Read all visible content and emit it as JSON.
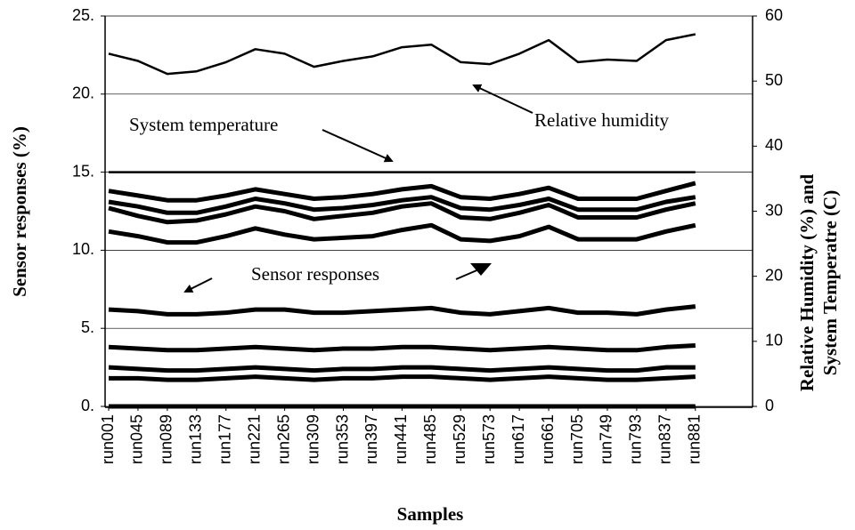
{
  "chart_data": {
    "type": "line",
    "xlabel": "Samples",
    "ylabel": "Sensor responses (%)",
    "y2label": [
      "Relative Humidity (%) and",
      "System Temperatre (C)"
    ],
    "annotations": [
      "System temperature",
      "Relative humidity",
      "Sensor responses"
    ],
    "categories": [
      "run001",
      "run045",
      "run089",
      "run133",
      "run177",
      "run221",
      "run265",
      "run309",
      "run353",
      "run397",
      "run441",
      "run485",
      "run529",
      "run573",
      "run617",
      "run661",
      "run705",
      "run749",
      "run793",
      "run837",
      "run881"
    ],
    "ylim": [
      0,
      25
    ],
    "yticks": [
      {
        "value": 0,
        "label": "0."
      },
      {
        "value": 5,
        "label": "5."
      },
      {
        "value": 10,
        "label": "10."
      },
      {
        "value": 15,
        "label": "15."
      },
      {
        "value": 20,
        "label": "20."
      },
      {
        "value": 25,
        "label": "25."
      }
    ],
    "y2lim": [
      0,
      60
    ],
    "y2ticks": [
      0,
      10,
      20,
      30,
      40,
      50,
      60
    ],
    "grid": true,
    "series": [
      {
        "axis": "y2",
        "color": "#000000",
        "values": [
          54.2,
          53.1,
          51.1,
          51.5,
          52.9,
          54.9,
          54.2,
          52.2,
          53.1,
          53.8,
          55.2,
          55.6,
          52.9,
          52.6,
          54.2,
          56.3,
          52.9,
          53.3,
          53.1,
          56.3,
          57.2
        ]
      },
      {
        "axis": "y2",
        "color": "#000000",
        "values": [
          36,
          36,
          36,
          36,
          36,
          36,
          36,
          36,
          36,
          36,
          36,
          36,
          36,
          36,
          36,
          36,
          36,
          36,
          36,
          36,
          36
        ]
      },
      {
        "color": "#000000",
        "values": [
          13.8,
          13.5,
          13.2,
          13.2,
          13.5,
          13.9,
          13.6,
          13.3,
          13.4,
          13.6,
          13.9,
          14.1,
          13.4,
          13.3,
          13.6,
          14,
          13.3,
          13.3,
          13.3,
          13.8,
          14.3
        ]
      },
      {
        "color": "#000000",
        "values": [
          13.1,
          12.8,
          12.4,
          12.4,
          12.8,
          13.3,
          13,
          12.6,
          12.7,
          12.9,
          13.2,
          13.4,
          12.7,
          12.6,
          12.9,
          13.3,
          12.6,
          12.6,
          12.6,
          13.1,
          13.4
        ]
      },
      {
        "color": "#000000",
        "values": [
          12.7,
          12.2,
          11.8,
          11.9,
          12.3,
          12.8,
          12.5,
          12,
          12.2,
          12.4,
          12.8,
          13,
          12.1,
          12,
          12.4,
          12.9,
          12.1,
          12.1,
          12.1,
          12.6,
          13
        ]
      },
      {
        "color": "#000000",
        "values": [
          11.2,
          10.9,
          10.5,
          10.5,
          10.9,
          11.4,
          11,
          10.7,
          10.8,
          10.9,
          11.3,
          11.6,
          10.7,
          10.6,
          10.9,
          11.5,
          10.7,
          10.7,
          10.7,
          11.2,
          11.6
        ]
      },
      {
        "color": "#000000",
        "values": [
          6.2,
          6.1,
          5.9,
          5.9,
          6,
          6.2,
          6.2,
          6,
          6,
          6.1,
          6.2,
          6.3,
          6,
          5.9,
          6.1,
          6.3,
          6,
          6,
          5.9,
          6.2,
          6.4
        ]
      },
      {
        "color": "#000000",
        "values": [
          3.8,
          3.7,
          3.6,
          3.6,
          3.7,
          3.8,
          3.7,
          3.6,
          3.7,
          3.7,
          3.8,
          3.8,
          3.7,
          3.6,
          3.7,
          3.8,
          3.7,
          3.6,
          3.6,
          3.8,
          3.9
        ]
      },
      {
        "color": "#000000",
        "values": [
          2.5,
          2.4,
          2.3,
          2.3,
          2.4,
          2.5,
          2.4,
          2.3,
          2.4,
          2.4,
          2.5,
          2.5,
          2.4,
          2.3,
          2.4,
          2.5,
          2.4,
          2.3,
          2.3,
          2.5,
          2.5
        ]
      },
      {
        "color": "#000000",
        "values": [
          1.8,
          1.8,
          1.7,
          1.7,
          1.8,
          1.9,
          1.8,
          1.7,
          1.8,
          1.8,
          1.9,
          1.9,
          1.8,
          1.7,
          1.8,
          1.9,
          1.8,
          1.7,
          1.7,
          1.8,
          1.9
        ]
      },
      {
        "color": "#000000",
        "values": [
          0,
          0,
          0,
          0,
          0,
          0,
          0,
          0,
          0,
          0,
          0,
          0,
          0,
          0,
          0,
          0,
          0,
          0,
          0,
          0,
          0
        ]
      }
    ]
  }
}
